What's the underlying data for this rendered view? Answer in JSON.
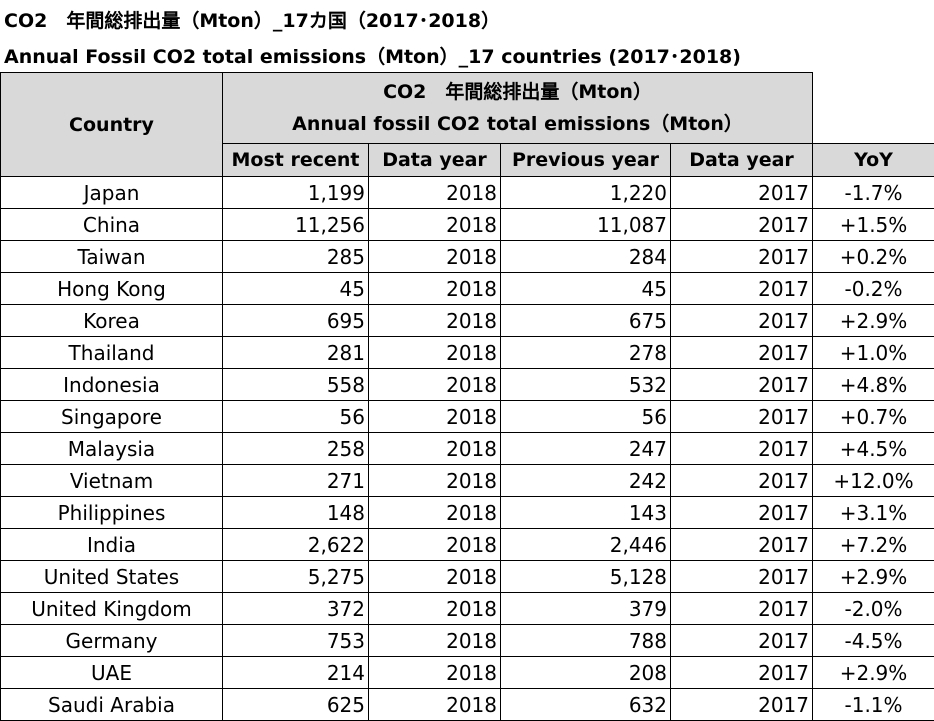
{
  "title_jp": "CO2　年間総排出量（Mton）_17カ国（2017･2018）",
  "title_en": "Annual Fossil CO2 total emissions（Mton）_17 countries (2017･2018)",
  "table": {
    "country_header": "Country",
    "group_header_jp": "CO2　年間総排出量（Mton）",
    "group_header_en": "Annual fossil CO2 total emissions（Mton）",
    "col_most_recent": "Most recent",
    "col_data_year_1": "Data year",
    "col_previous_year": "Previous year",
    "col_data_year_2": "Data year",
    "col_yoy": "YoY",
    "rows": [
      {
        "country": "Japan",
        "recent": "1,199",
        "year1": "2018",
        "previous": "1,220",
        "year2": "2017",
        "yoy": "-1.7%"
      },
      {
        "country": "China",
        "recent": "11,256",
        "year1": "2018",
        "previous": "11,087",
        "year2": "2017",
        "yoy": "+1.5%"
      },
      {
        "country": "Taiwan",
        "recent": "285",
        "year1": "2018",
        "previous": "284",
        "year2": "2017",
        "yoy": "+0.2%"
      },
      {
        "country": "Hong Kong",
        "recent": "45",
        "year1": "2018",
        "previous": "45",
        "year2": "2017",
        "yoy": "-0.2%"
      },
      {
        "country": "Korea",
        "recent": "695",
        "year1": "2018",
        "previous": "675",
        "year2": "2017",
        "yoy": "+2.9%"
      },
      {
        "country": "Thailand",
        "recent": "281",
        "year1": "2018",
        "previous": "278",
        "year2": "2017",
        "yoy": "+1.0%"
      },
      {
        "country": "Indonesia",
        "recent": "558",
        "year1": "2018",
        "previous": "532",
        "year2": "2017",
        "yoy": "+4.8%"
      },
      {
        "country": "Singapore",
        "recent": "56",
        "year1": "2018",
        "previous": "56",
        "year2": "2017",
        "yoy": "+0.7%"
      },
      {
        "country": "Malaysia",
        "recent": "258",
        "year1": "2018",
        "previous": "247",
        "year2": "2017",
        "yoy": "+4.5%"
      },
      {
        "country": "Vietnam",
        "recent": "271",
        "year1": "2018",
        "previous": "242",
        "year2": "2017",
        "yoy": "+12.0%"
      },
      {
        "country": "Philippines",
        "recent": "148",
        "year1": "2018",
        "previous": "143",
        "year2": "2017",
        "yoy": "+3.1%"
      },
      {
        "country": "India",
        "recent": "2,622",
        "year1": "2018",
        "previous": "2,446",
        "year2": "2017",
        "yoy": "+7.2%"
      },
      {
        "country": "United States",
        "recent": "5,275",
        "year1": "2018",
        "previous": "5,128",
        "year2": "2017",
        "yoy": "+2.9%"
      },
      {
        "country": "United Kingdom",
        "recent": "372",
        "year1": "2018",
        "previous": "379",
        "year2": "2017",
        "yoy": "-2.0%"
      },
      {
        "country": "Germany",
        "recent": "753",
        "year1": "2018",
        "previous": "788",
        "year2": "2017",
        "yoy": "-4.5%"
      },
      {
        "country": "UAE",
        "recent": "214",
        "year1": "2018",
        "previous": "208",
        "year2": "2017",
        "yoy": "+2.9%"
      },
      {
        "country": "Saudi Arabia",
        "recent": "625",
        "year1": "2018",
        "previous": "632",
        "year2": "2017",
        "yoy": "-1.1%"
      }
    ]
  }
}
